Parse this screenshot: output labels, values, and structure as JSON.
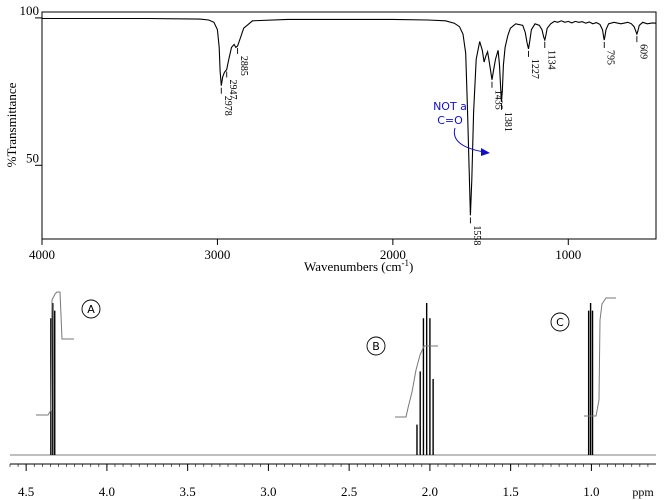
{
  "chart_data": [
    {
      "type": "line",
      "xlabel": "Wavenumbers (cm",
      "xlabel_sup": "-1",
      "xlabel_end": ")",
      "ylabel": "%Transmittance",
      "xlim": [
        4000,
        500
      ],
      "ylim": [
        25,
        102
      ],
      "x_ticks": [
        4000,
        3000,
        2000,
        1000
      ],
      "x_tick_labels": [
        "4000",
        "3000",
        "2000",
        "1000"
      ],
      "y_ticks": [
        100,
        50
      ],
      "y_tick_labels": [
        "100",
        "50"
      ],
      "series": [
        {
          "x": [
            4000,
            3700,
            3400,
            3100,
            3050,
            3020,
            3000,
            2990,
            2985,
            2978,
            2970,
            2960,
            2947,
            2935,
            2920,
            2905,
            2895,
            2885,
            2870,
            2850,
            2800,
            2600,
            2400,
            2200,
            2000,
            1800,
            1700,
            1650,
            1620,
            1600,
            1585,
            1575,
            1565,
            1558,
            1550,
            1540,
            1525,
            1505,
            1490,
            1480,
            1470,
            1460,
            1450,
            1440,
            1435,
            1428,
            1415,
            1400,
            1392,
            1385,
            1381,
            1376,
            1370,
            1360,
            1345,
            1330,
            1300,
            1260,
            1245,
            1235,
            1227,
            1220,
            1210,
            1190,
            1165,
            1150,
            1140,
            1134,
            1128,
            1120,
            1100,
            1080,
            1060,
            1040,
            1020,
            1000,
            980,
            960,
            940,
            920,
            900,
            880,
            860,
            840,
            820,
            805,
            798,
            795,
            792,
            785,
            770,
            740,
            700,
            660,
            640,
            625,
            615,
            609,
            604,
            595,
            575,
            550,
            520,
            500
          ],
          "y": [
            99.8,
            99.8,
            99.8,
            99.6,
            99.3,
            98.5,
            96.0,
            90.0,
            82.0,
            77.0,
            80.0,
            81.5,
            82.5,
            86.0,
            90.0,
            91.0,
            90.0,
            90.5,
            93.0,
            96.5,
            99.0,
            99.5,
            99.5,
            99.5,
            99.5,
            99.3,
            99.0,
            98.2,
            97.0,
            94.5,
            88.0,
            70.0,
            48.0,
            33.0,
            45.0,
            68.0,
            86.0,
            92.0,
            89.0,
            85.0,
            87.0,
            88.5,
            85.0,
            81.0,
            79.0,
            81.5,
            86.0,
            89.0,
            84.0,
            76.0,
            71.5,
            75.0,
            84.0,
            90.0,
            94.0,
            96.5,
            98.0,
            97.5,
            95.0,
            91.5,
            89.5,
            92.0,
            96.0,
            98.0,
            97.5,
            96.0,
            93.5,
            92.5,
            94.0,
            96.5,
            98.0,
            98.8,
            98.5,
            99.0,
            98.5,
            98.8,
            98.3,
            98.8,
            98.5,
            98.7,
            98.2,
            98.6,
            98.0,
            98.4,
            97.8,
            96.0,
            93.5,
            92.5,
            93.5,
            96.0,
            98.0,
            98.5,
            98.0,
            98.5,
            98.0,
            97.0,
            95.5,
            94.5,
            95.5,
            97.5,
            98.5,
            98.0,
            98.3,
            98.2
          ]
        }
      ],
      "peak_labels": [
        {
          "x": 2978,
          "y": 77.0,
          "label": "2978"
        },
        {
          "x": 2947,
          "y": 82.5,
          "label": "2947"
        },
        {
          "x": 2885,
          "y": 90.5,
          "label": "2885"
        },
        {
          "x": 1558,
          "y": 33.0,
          "label": "1558"
        },
        {
          "x": 1435,
          "y": 79.0,
          "label": "1435"
        },
        {
          "x": 1381,
          "y": 71.5,
          "label": "1381"
        },
        {
          "x": 1227,
          "y": 89.5,
          "label": "1227"
        },
        {
          "x": 1134,
          "y": 92.5,
          "label": "1134"
        },
        {
          "x": 795,
          "y": 92.5,
          "label": "795"
        },
        {
          "x": 609,
          "y": 94.5,
          "label": "609"
        }
      ],
      "annotation": {
        "lines": [
          "NOT a",
          "C=O"
        ],
        "color": "#1010c8"
      }
    },
    {
      "type": "line",
      "xlabel": "ppm",
      "xlim": [
        4.6,
        0.6
      ],
      "x_ticks": [
        4.5,
        4.0,
        3.5,
        3.0,
        2.5,
        2.0,
        1.5,
        1.0
      ],
      "x_tick_labels": [
        "4.5",
        "4.0",
        "3.5",
        "3.0",
        "2.5",
        "2.0",
        "1.5",
        "1.0"
      ],
      "peaks": [
        {
          "center": 4.335,
          "spacing": 0.012,
          "intensities": [
            0.95,
            1.0,
            0.9
          ],
          "label": "A"
        },
        {
          "center": 2.03,
          "spacing": 0.02,
          "intensities": [
            0.5,
            0.9,
            1.0,
            0.9,
            0.55,
            0.2
          ],
          "label": "B"
        },
        {
          "center": 1.005,
          "spacing": 0.012,
          "intensities": [
            0.95,
            1.0,
            0.95
          ],
          "label": "C"
        }
      ],
      "peak_labels": [
        {
          "label": "A"
        },
        {
          "label": "B"
        },
        {
          "label": "C"
        }
      ]
    }
  ]
}
